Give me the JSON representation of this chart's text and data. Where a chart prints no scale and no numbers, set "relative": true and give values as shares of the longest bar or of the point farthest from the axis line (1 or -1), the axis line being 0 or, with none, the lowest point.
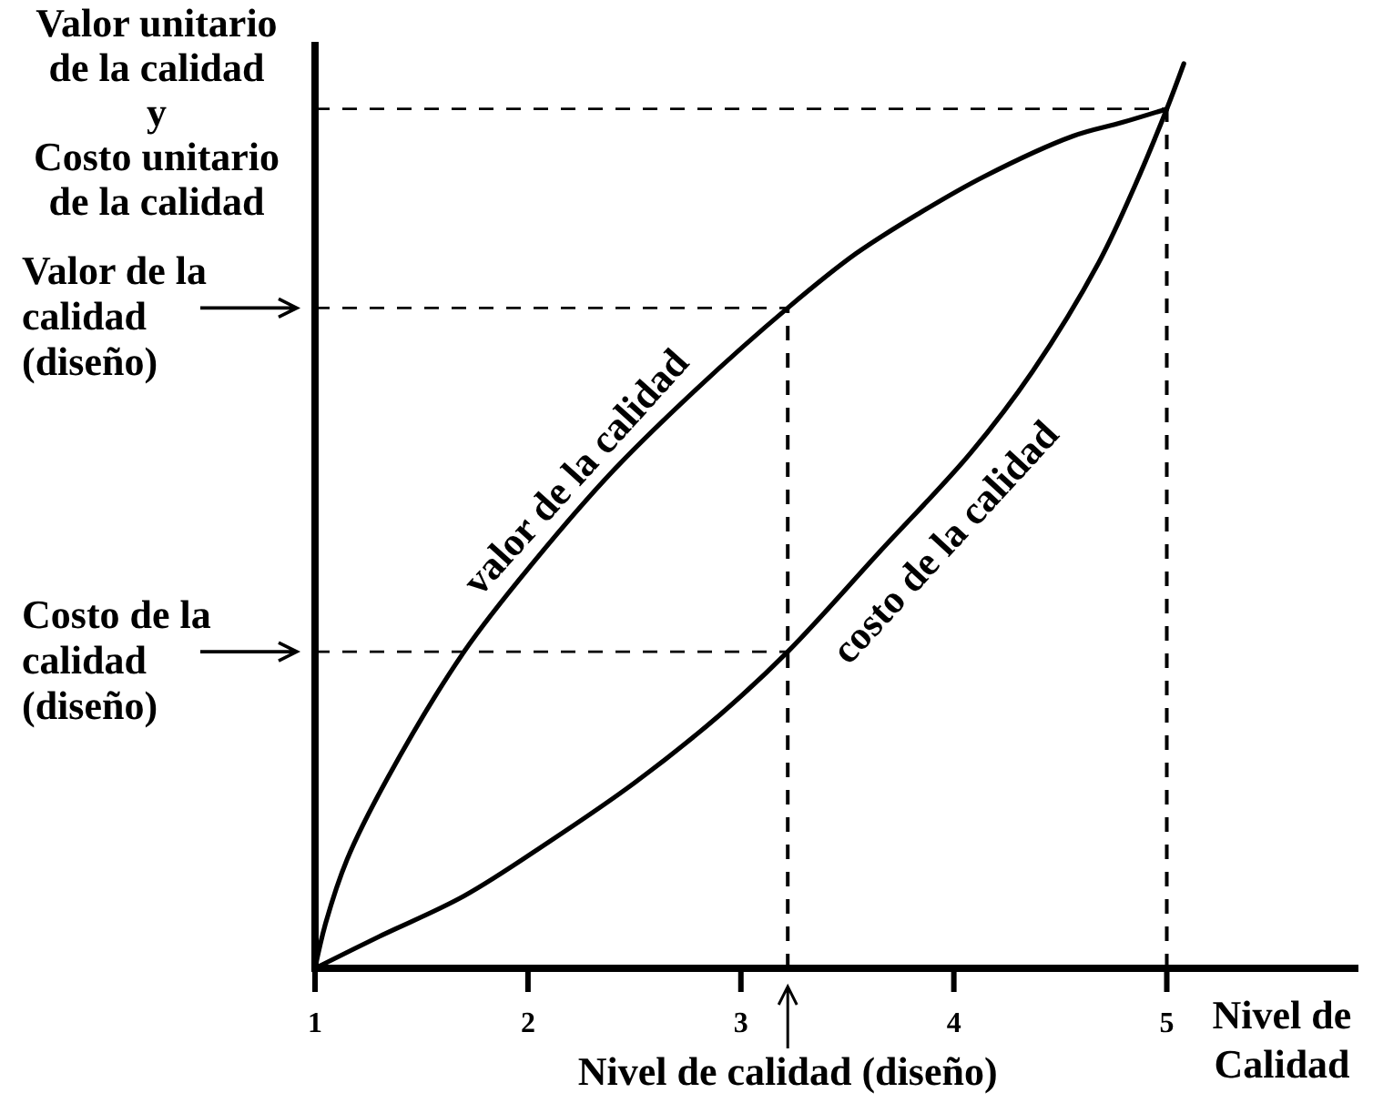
{
  "chart_data": {
    "type": "line",
    "relative": true,
    "ylabel": "Valor unitario\nde la calidad\ny\nCosto unitario\nde la calidad",
    "xlabel": "Nivel de\nCalidad",
    "xlim": [
      1,
      5.9
    ],
    "xticks": [
      1,
      2,
      3,
      4,
      5
    ],
    "line_style": "solid",
    "series": [
      {
        "name": "valor de la calidad",
        "color": "#000000",
        "x": [
          1,
          1.05,
          1.15,
          1.34,
          1.7,
          2.03,
          2.4,
          2.79,
          3.22,
          3.54,
          3.84,
          4.14,
          4.56,
          4.79,
          5.0
        ],
        "values": [
          0,
          0.05,
          0.12,
          0.21,
          0.35,
          0.45,
          0.55,
          0.64,
          0.73,
          0.79,
          0.835,
          0.875,
          0.92,
          0.935,
          0.95
        ]
      },
      {
        "name": "costo de la calidad",
        "color": "#000000",
        "x": [
          1,
          1.3,
          1.7,
          2.1,
          2.5,
          2.9,
          3.22,
          3.65,
          4.08,
          4.37,
          4.68,
          4.85,
          5.0,
          5.08
        ],
        "values": [
          0,
          0.035,
          0.08,
          0.14,
          0.205,
          0.28,
          0.35,
          0.46,
          0.57,
          0.66,
          0.78,
          0.865,
          0.95,
          1
        ]
      }
    ],
    "ref_lines": [
      {
        "axis": "y",
        "value": 0.73,
        "label": "Valor de la\ncalidad\n(diseño)",
        "line_style": "dashed"
      },
      {
        "axis": "y",
        "value": 0.35,
        "label": "Costo de la\ncalidad\n(diseño)",
        "line_style": "dashed"
      },
      {
        "axis": "x",
        "value": 3.22,
        "label": "Nivel de calidad (diseño)",
        "line_style": "dashed"
      },
      {
        "axis": "x",
        "value": 5,
        "line_style": "dashed"
      },
      {
        "axis": "y",
        "value": 0.95,
        "line_style": "dashed"
      }
    ]
  }
}
